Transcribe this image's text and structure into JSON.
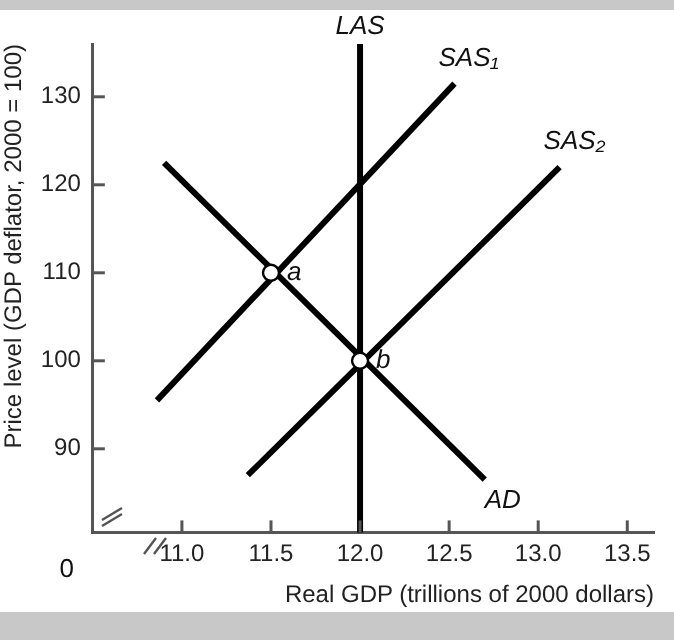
{
  "chart_data": {
    "type": "line",
    "xlabel": "Real GDP (trillions of 2000 dollars)",
    "ylabel": "Price level (GDP deflator, 2000 = 100)",
    "xlim": [
      10.5,
      13.65
    ],
    "ylim": [
      80.5,
      136
    ],
    "xticks": [
      {
        "value": 11,
        "label": "11.0"
      },
      11.5,
      {
        "value": 12,
        "label": "12.0"
      },
      12.5,
      {
        "value": 13,
        "label": "13.0"
      },
      13.5
    ],
    "yticks": [
      90,
      100,
      110,
      120,
      130
    ],
    "marker": "none",
    "line_style": "solid",
    "series": [
      {
        "name": "SAS₁",
        "color": "#000000",
        "x": [
          10.86,
          12.53
        ],
        "values": [
          95.5,
          131.5
        ]
      },
      {
        "name": "SAS₂",
        "color": "#000000",
        "x": [
          11.37,
          13.12
        ],
        "values": [
          87,
          122
        ]
      },
      {
        "name": "AD",
        "color": "#000000",
        "x": [
          10.9,
          12.7
        ],
        "values": [
          122.5,
          86.5
        ]
      },
      {
        "type": "scatter",
        "marker": "circle",
        "color": "#000000",
        "x": [
          11.5,
          12
        ],
        "values": [
          110,
          100
        ]
      }
    ],
    "ref_lines": [
      {
        "axis": "x",
        "value": 12,
        "label": "LAS",
        "color": "#000000"
      }
    ],
    "annotations": [
      "0",
      {
        "text": "a",
        "x": 11.5,
        "y": 110
      },
      {
        "text": "b",
        "x": 12,
        "y": 100
      }
    ]
  }
}
